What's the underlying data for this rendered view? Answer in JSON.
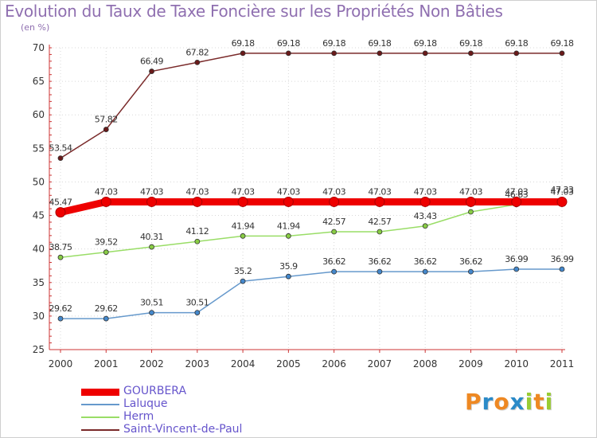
{
  "title": "Evolution du Taux de Taxe Foncière sur les Propriétés Non Bâties",
  "unit_label": "(en %)",
  "brand": {
    "letters": [
      "P",
      "r",
      "o",
      "x",
      "i",
      "t",
      "i"
    ],
    "colors": [
      "#ee8822",
      "#2a8ac8",
      "#ee8822",
      "#2a8ac8",
      "#99cc33",
      "#ee8822",
      "#99cc33"
    ]
  },
  "chart_data": {
    "type": "line",
    "title": "Evolution du Taux de Taxe Foncière sur les Propriétés Non Bâties",
    "ylabel": "(en %)",
    "xlabel": "",
    "ylim": [
      25,
      70
    ],
    "yticks": [
      25,
      30,
      35,
      40,
      45,
      50,
      55,
      60,
      65,
      70
    ],
    "x": [
      "2000",
      "2001",
      "2002",
      "2003",
      "2004",
      "2005",
      "2006",
      "2007",
      "2008",
      "2009",
      "2010",
      "2011"
    ],
    "grid": "dotted vertical and horizontal",
    "legend_position": "bottom-left",
    "series": [
      {
        "name": "Saint-Vincent-de-Paul",
        "color": "#7a2a2a",
        "marker_fill": "#6a1a1a",
        "values": [
          53.54,
          57.82,
          66.49,
          67.82,
          69.18,
          69.18,
          69.18,
          69.18,
          69.18,
          69.18,
          69.18,
          69.18
        ],
        "labels": [
          "53.54",
          "57.82",
          "66.49",
          "67.82",
          "69.18",
          "69.18",
          "69.18",
          "69.18",
          "69.18",
          "69.18",
          "69.18",
          "69.18"
        ]
      },
      {
        "name": "Herm",
        "color": "#99dd66",
        "marker_fill": "#88cc44",
        "values": [
          38.75,
          39.52,
          40.31,
          41.12,
          41.94,
          41.94,
          42.57,
          42.57,
          43.43,
          45.54,
          46.63,
          47.33
        ],
        "labels": [
          "38.75",
          "39.52",
          "40.31",
          "41.12",
          "41.94",
          "41.94",
          "42.57",
          "42.57",
          "43.43",
          "45.54",
          "46.63",
          "47.33"
        ]
      },
      {
        "name": "Laluque",
        "color": "#6699cc",
        "marker_fill": "#4488cc",
        "values": [
          29.62,
          29.62,
          30.51,
          30.51,
          35.2,
          35.9,
          36.62,
          36.62,
          36.62,
          36.62,
          36.99,
          36.99
        ],
        "labels": [
          "29.62",
          "29.62",
          "30.51",
          "30.51",
          "35.2",
          "35.9",
          "36.62",
          "36.62",
          "36.62",
          "36.62",
          "36.99",
          "36.99"
        ]
      },
      {
        "name": "GOURBERA",
        "color": "#ee0000",
        "marker_fill": "#ee0000",
        "values": [
          45.47,
          47.03,
          47.03,
          47.03,
          47.03,
          47.03,
          47.03,
          47.03,
          47.03,
          47.03,
          47.03,
          47.03
        ],
        "labels": [
          "45.47",
          "47.03",
          "47.03",
          "47.03",
          "47.03",
          "47.03",
          "47.03",
          "47.03",
          "47.03",
          "47.03",
          "47.03",
          "47.03"
        ]
      }
    ],
    "legend": [
      "GOURBERA",
      "Laluque",
      "Herm",
      "Saint-Vincent-de-Paul"
    ]
  }
}
